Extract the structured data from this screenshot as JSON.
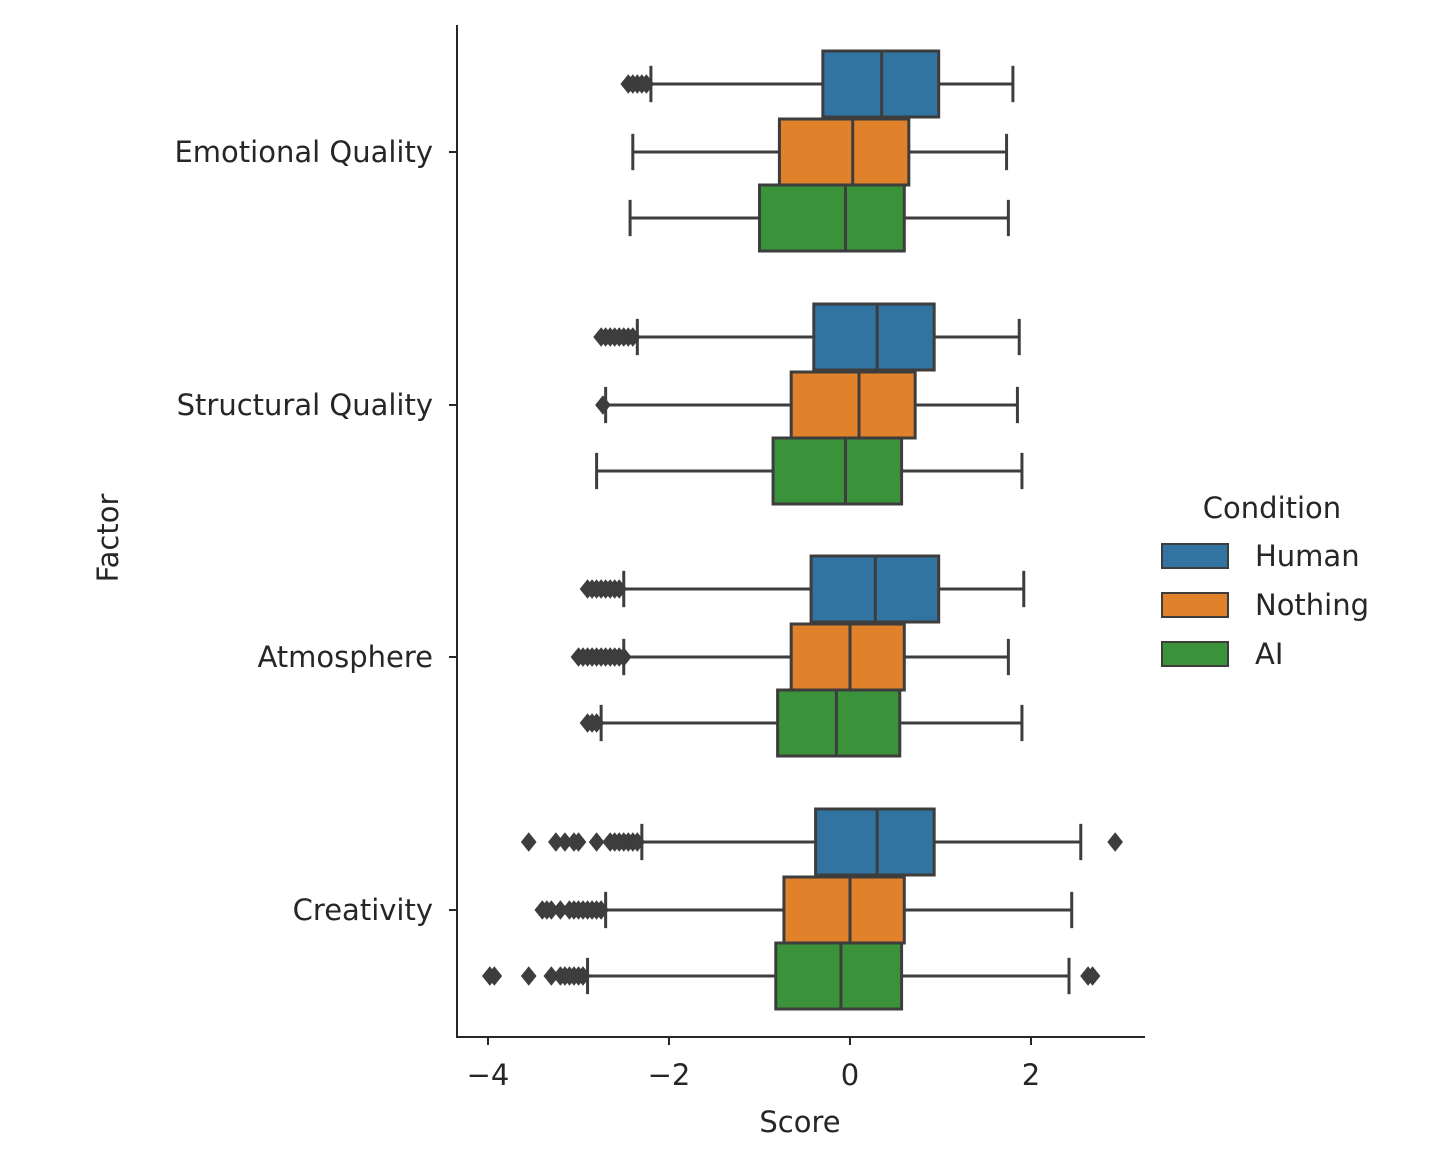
{
  "chart_data": {
    "type": "boxplot",
    "orientation": "horizontal",
    "xlabel": "Score",
    "ylabel": "Factor",
    "xlim": [
      -4.2,
      3.3
    ],
    "xticks": [
      -4,
      -2,
      0,
      2
    ],
    "xtick_labels": [
      "−4",
      "−2",
      "0",
      "2"
    ],
    "categories": [
      "Emotional Quality",
      "Structural Quality",
      "Atmosphere",
      "Creativity"
    ],
    "legend": {
      "title": "Condition",
      "placement": "right",
      "entries": [
        "Human",
        "Nothing",
        "AI"
      ]
    },
    "series": [
      {
        "name": "Human",
        "color": "#3274a1",
        "boxes": [
          {
            "whislo": -2.2,
            "q1": -0.3,
            "med": 0.35,
            "q3": 0.98,
            "whishi": 1.8,
            "fliers": [
              -2.45,
              -2.4,
              -2.35,
              -2.3,
              -2.25
            ]
          },
          {
            "whislo": -2.35,
            "q1": -0.4,
            "med": 0.3,
            "q3": 0.93,
            "whishi": 1.87,
            "fliers": [
              -2.75,
              -2.7,
              -2.65,
              -2.6,
              -2.55,
              -2.5,
              -2.45,
              -2.4
            ]
          },
          {
            "whislo": -2.5,
            "q1": -0.43,
            "med": 0.28,
            "q3": 0.98,
            "whishi": 1.92,
            "fliers": [
              -2.9,
              -2.85,
              -2.8,
              -2.75,
              -2.7,
              -2.65,
              -2.6,
              -2.55
            ]
          },
          {
            "whislo": -2.3,
            "q1": -0.38,
            "med": 0.3,
            "q3": 0.93,
            "whishi": 2.55,
            "fliers": [
              -3.55,
              -3.25,
              -3.15,
              -3.05,
              -3.0,
              -2.8,
              -2.65,
              -2.6,
              -2.55,
              -2.5,
              -2.45,
              -2.4,
              -2.35,
              2.93
            ]
          }
        ]
      },
      {
        "name": "Nothing",
        "color": "#e1812c",
        "boxes": [
          {
            "whislo": -2.4,
            "q1": -0.78,
            "med": 0.03,
            "q3": 0.65,
            "whishi": 1.73,
            "fliers": []
          },
          {
            "whislo": -2.7,
            "q1": -0.65,
            "med": 0.1,
            "q3": 0.72,
            "whishi": 1.85,
            "fliers": [
              -2.73
            ]
          },
          {
            "whislo": -2.5,
            "q1": -0.65,
            "med": 0.0,
            "q3": 0.6,
            "whishi": 1.75,
            "fliers": [
              -3.0,
              -2.95,
              -2.9,
              -2.85,
              -2.8,
              -2.75,
              -2.7,
              -2.65,
              -2.6,
              -2.55,
              -2.5
            ]
          },
          {
            "whislo": -2.7,
            "q1": -0.73,
            "med": 0.0,
            "q3": 0.6,
            "whishi": 2.45,
            "fliers": [
              -3.4,
              -3.35,
              -3.3,
              -3.2,
              -3.1,
              -3.05,
              -3.0,
              -2.95,
              -2.9,
              -2.85,
              -2.8,
              -2.75
            ]
          }
        ]
      },
      {
        "name": "AI",
        "color": "#3a923a",
        "boxes": [
          {
            "whislo": -2.43,
            "q1": -1.0,
            "med": -0.05,
            "q3": 0.6,
            "whishi": 1.75,
            "fliers": []
          },
          {
            "whislo": -2.8,
            "q1": -0.85,
            "med": -0.05,
            "q3": 0.57,
            "whishi": 1.9,
            "fliers": []
          },
          {
            "whislo": -2.75,
            "q1": -0.8,
            "med": -0.15,
            "q3": 0.55,
            "whishi": 1.9,
            "fliers": [
              -2.9,
              -2.85,
              -2.8
            ]
          },
          {
            "whislo": -2.9,
            "q1": -0.82,
            "med": -0.1,
            "q3": 0.57,
            "whishi": 2.42,
            "fliers": [
              -3.98,
              -3.93,
              -3.55,
              -3.3,
              -3.2,
              -3.15,
              -3.1,
              -3.05,
              -3.0,
              -2.95,
              2.63,
              2.68
            ]
          }
        ]
      }
    ]
  }
}
